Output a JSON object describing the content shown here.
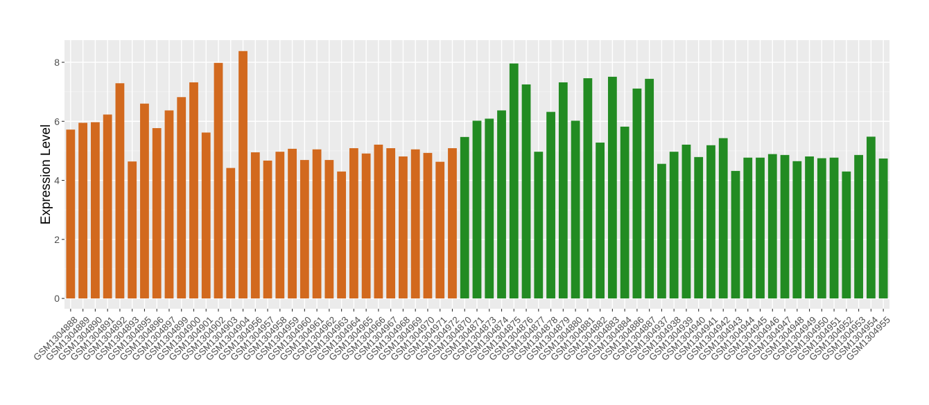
{
  "chart_data": {
    "type": "bar",
    "title": "",
    "xlabel": "",
    "ylabel": "Expression Level",
    "ylim": [
      -0.35,
      8.75
    ],
    "yticks": [
      0,
      2,
      4,
      6,
      8
    ],
    "grid": true,
    "legend": "none",
    "categories": [
      "GSM1304888",
      "GSM1304889",
      "GSM1304890",
      "GSM1304891",
      "GSM1304892",
      "GSM1304893",
      "GSM1304895",
      "GSM1304896",
      "GSM1304897",
      "GSM1304899",
      "GSM1304900",
      "GSM1304901",
      "GSM1304902",
      "GSM1304903",
      "GSM1304904",
      "GSM1304956",
      "GSM1304957",
      "GSM1304958",
      "GSM1304959",
      "GSM1304960",
      "GSM1304961",
      "GSM1304962",
      "GSM1304963",
      "GSM1304964",
      "GSM1304965",
      "GSM1304966",
      "GSM1304967",
      "GSM1304968",
      "GSM1304969",
      "GSM1304970",
      "GSM1304971",
      "GSM1304972",
      "GSM1304870",
      "GSM1304871",
      "GSM1304873",
      "GSM1304874",
      "GSM1304875",
      "GSM1304876",
      "GSM1304877",
      "GSM1304878",
      "GSM1304879",
      "GSM1304880",
      "GSM1304881",
      "GSM1304882",
      "GSM1304883",
      "GSM1304884",
      "GSM1304886",
      "GSM1304887",
      "GSM1304937",
      "GSM1304938",
      "GSM1304939",
      "GSM1304940",
      "GSM1304941",
      "GSM1304942",
      "GSM1304943",
      "GSM1304944",
      "GSM1304945",
      "GSM1304946",
      "GSM1304947",
      "GSM1304948",
      "GSM1304949",
      "GSM1304950",
      "GSM1304951",
      "GSM1304952",
      "GSM1304953",
      "GSM1304954",
      "GSM1304955"
    ],
    "values": [
      5.72,
      5.95,
      5.97,
      6.23,
      7.29,
      4.64,
      6.6,
      5.77,
      6.37,
      6.82,
      7.32,
      5.62,
      7.98,
      4.42,
      8.38,
      4.95,
      4.67,
      4.97,
      5.07,
      4.69,
      5.05,
      4.69,
      4.3,
      5.09,
      4.91,
      5.21,
      5.09,
      4.81,
      5.05,
      4.93,
      4.63,
      5.09,
      5.47,
      6.02,
      6.09,
      6.37,
      7.96,
      7.25,
      4.97,
      6.32,
      7.32,
      6.02,
      7.46,
      5.28,
      7.51,
      5.82,
      7.11,
      7.44,
      4.56,
      4.97,
      5.21,
      4.79,
      5.19,
      5.43,
      4.32,
      4.77,
      4.77,
      4.89,
      4.86,
      4.65,
      4.81,
      4.75,
      4.77,
      4.3,
      4.86,
      5.48,
      4.74
    ],
    "group_colors": [
      "#D2691E",
      "#228B22"
    ],
    "group_sizes": [
      32,
      35
    ]
  }
}
